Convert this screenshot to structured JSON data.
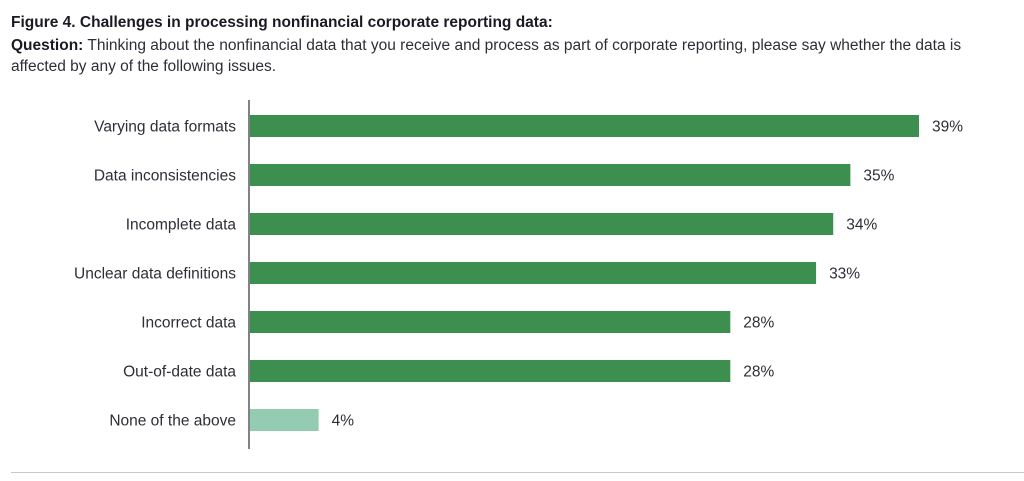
{
  "figure": {
    "title": "Figure 4. Challenges in processing nonfinancial corporate reporting data:",
    "question_label": "Question:",
    "question_text": " Thinking about the nonfinancial data that you receive and process as part of corporate reporting, please say whether the data is affected by any of the following issues."
  },
  "chart_data": {
    "type": "bar",
    "orientation": "horizontal",
    "title": "Challenges in processing nonfinancial corporate reporting data",
    "xlabel": "",
    "ylabel": "",
    "xlim": [
      0,
      39
    ],
    "grid": false,
    "categories": [
      "Varying data formats",
      "Data inconsistencies",
      "Incomplete data",
      "Unclear data definitions",
      "Incorrect data",
      "Out-of-date data",
      "None of the above"
    ],
    "values": [
      39,
      35,
      34,
      33,
      28,
      28,
      4
    ],
    "value_labels": [
      "39%",
      "35%",
      "34%",
      "33%",
      "28%",
      "28%",
      "4%"
    ],
    "colors": [
      "#3d8f4f",
      "#3d8f4f",
      "#3d8f4f",
      "#3d8f4f",
      "#3d8f4f",
      "#3d8f4f",
      "#93ccb0"
    ]
  }
}
